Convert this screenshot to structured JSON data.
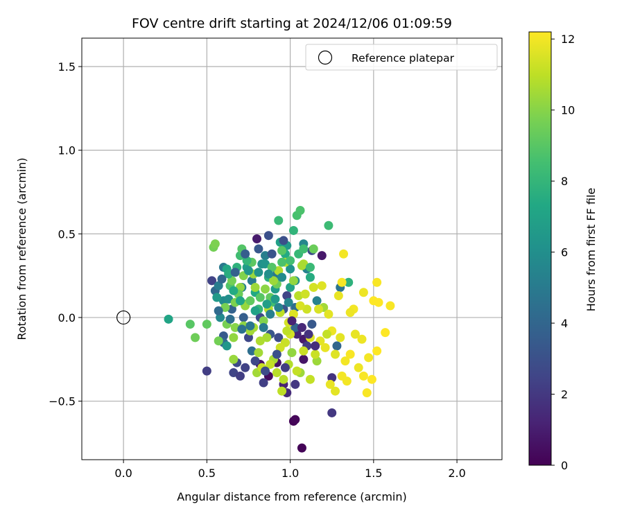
{
  "chart_data": {
    "type": "scatter",
    "title": "FOV centre drift starting at 2024/12/06 01:09:59",
    "xlabel": "Angular distance from reference (arcmin)",
    "ylabel": "Rotation from reference (arcmin)",
    "xlim": [
      -0.25,
      2.27
    ],
    "ylim": [
      -0.85,
      1.67
    ],
    "xticks": [
      "0.0",
      "0.5",
      "1.0",
      "1.5",
      "2.0"
    ],
    "xtick_values": [
      0.0,
      0.5,
      1.0,
      1.5,
      2.0
    ],
    "yticks": [
      "−0.5",
      "0.0",
      "0.5",
      "1.0",
      "1.5"
    ],
    "ytick_values": [
      -0.5,
      0.0,
      0.5,
      1.0,
      1.5
    ],
    "grid": true,
    "legend": {
      "position": "top-right",
      "entries": [
        "Reference platepar"
      ]
    },
    "reference_point": {
      "x": 0.0,
      "y": 0.0,
      "label": "Reference platepar"
    },
    "colorbar": {
      "label": "Hours from first FF file",
      "colormap": "viridis",
      "range": [
        0,
        12.2
      ],
      "ticks": [
        "0",
        "2",
        "4",
        "6",
        "8",
        "10",
        "12"
      ],
      "tick_values": [
        0,
        2,
        4,
        6,
        8,
        10,
        12
      ]
    },
    "points": [
      [
        1.02,
        -0.62,
        0.1
      ],
      [
        1.03,
        -0.61,
        0.2
      ],
      [
        1.07,
        -0.78,
        0.1
      ],
      [
        0.82,
        -0.28,
        0.5
      ],
      [
        0.92,
        -0.27,
        0.6
      ],
      [
        0.87,
        -0.35,
        0.4
      ],
      [
        1.08,
        -0.25,
        0.7
      ],
      [
        0.8,
        0.47,
        0.9
      ],
      [
        1.19,
        0.37,
        0.8
      ],
      [
        1.08,
        -0.13,
        0.9
      ],
      [
        0.96,
        -0.4,
        1.2
      ],
      [
        0.98,
        -0.45,
        1.5
      ],
      [
        1.04,
        -0.1,
        1.3
      ],
      [
        1.25,
        -0.57,
        2.0
      ],
      [
        1.25,
        -0.36,
        1.8
      ],
      [
        0.5,
        -0.32,
        2.2
      ],
      [
        0.53,
        0.22,
        2.4
      ],
      [
        0.66,
        -0.33,
        2.5
      ],
      [
        0.7,
        -0.35,
        2.2
      ],
      [
        0.68,
        -0.27,
        2.7
      ],
      [
        0.75,
        -0.12,
        2.6
      ],
      [
        0.84,
        -0.39,
        2.3
      ],
      [
        0.93,
        -0.12,
        2.8
      ],
      [
        1.1,
        -0.17,
        2.1
      ],
      [
        0.87,
        0.49,
        3.0
      ],
      [
        1.13,
        0.4,
        2.9
      ],
      [
        0.98,
        0.13,
        2.5
      ],
      [
        0.82,
        0.0,
        2.7
      ],
      [
        0.96,
        0.05,
        3.2
      ],
      [
        0.6,
        -0.11,
        3.5
      ],
      [
        0.72,
        0.0,
        3.6
      ],
      [
        0.65,
        0.05,
        3.8
      ],
      [
        0.88,
        -0.1,
        3.3
      ],
      [
        1.13,
        -0.04,
        3.4
      ],
      [
        1.03,
        -0.06,
        3.9
      ],
      [
        1.28,
        -0.17,
        4.0
      ],
      [
        0.6,
        -0.15,
        4.2
      ],
      [
        0.77,
        -0.2,
        4.4
      ],
      [
        1.03,
        0.06,
        4.3
      ],
      [
        0.55,
        0.16,
        4.1
      ],
      [
        1.3,
        0.18,
        4.7
      ],
      [
        0.6,
        0.3,
        4.9
      ],
      [
        0.57,
        0.19,
        5.1
      ],
      [
        0.71,
        0.18,
        5.3
      ],
      [
        0.92,
        0.26,
        4.8
      ],
      [
        0.77,
        0.22,
        5.0
      ],
      [
        0.85,
        0.37,
        5.2
      ],
      [
        1.1,
        0.29,
        5.4
      ],
      [
        1.08,
        0.44,
        5.6
      ],
      [
        1.16,
        0.1,
        5.3
      ],
      [
        0.58,
        0.0,
        5.7
      ],
      [
        0.6,
        0.1,
        5.8
      ],
      [
        0.63,
        0.11,
        6.0
      ],
      [
        0.83,
        0.32,
        6.1
      ],
      [
        0.85,
        0.32,
        6.3
      ],
      [
        1.03,
        0.22,
        5.9
      ],
      [
        1.0,
        0.29,
        6.2
      ],
      [
        0.62,
        -0.17,
        6.4
      ],
      [
        0.56,
        0.12,
        6.5
      ],
      [
        0.98,
        0.43,
        6.6
      ],
      [
        0.91,
        0.17,
        6.7
      ],
      [
        0.74,
        0.3,
        6.8
      ],
      [
        0.94,
        0.45,
        6.9
      ],
      [
        1.0,
        0.18,
        7.0
      ],
      [
        0.27,
        -0.01,
        7.1
      ],
      [
        0.62,
        0.29,
        7.2
      ],
      [
        0.79,
        0.15,
        7.3
      ],
      [
        0.97,
        0.38,
        7.4
      ],
      [
        1.12,
        0.24,
        7.5
      ],
      [
        0.87,
        0.24,
        7.6
      ],
      [
        1.35,
        0.21,
        7.8
      ],
      [
        1.02,
        0.52,
        7.9
      ],
      [
        0.81,
        0.05,
        8.0
      ],
      [
        1.05,
        0.38,
        8.1
      ],
      [
        0.93,
        0.58,
        8.2
      ],
      [
        1.23,
        0.55,
        8.3
      ],
      [
        0.7,
        0.37,
        8.4
      ],
      [
        0.89,
        0.09,
        8.5
      ],
      [
        1.04,
        0.61,
        8.6
      ],
      [
        1.06,
        0.64,
        8.7
      ],
      [
        0.64,
        0.19,
        8.8
      ],
      [
        0.71,
        0.41,
        8.9
      ],
      [
        0.95,
        0.4,
        9.0
      ],
      [
        0.77,
        0.33,
        9.1
      ],
      [
        0.88,
        0.12,
        9.2
      ],
      [
        0.73,
        0.08,
        9.3
      ],
      [
        1.14,
        0.41,
        9.4
      ],
      [
        0.92,
        0.2,
        9.5
      ],
      [
        0.57,
        -0.14,
        9.6
      ],
      [
        0.61,
        0.06,
        9.7
      ],
      [
        0.67,
        0.09,
        9.8
      ],
      [
        0.84,
        -0.02,
        9.9
      ],
      [
        0.4,
        -0.04,
        9.0
      ],
      [
        0.5,
        -0.04,
        9.2
      ],
      [
        0.54,
        0.42,
        9.6
      ],
      [
        0.55,
        0.44,
        9.8
      ],
      [
        0.43,
        -0.12,
        9.5
      ],
      [
        0.62,
        -0.04,
        9.7
      ],
      [
        0.67,
        -0.06,
        10.0
      ],
      [
        0.72,
        -0.05,
        10.1
      ],
      [
        0.7,
        0.18,
        10.2
      ],
      [
        0.73,
        0.07,
        10.3
      ],
      [
        0.79,
        0.18,
        10.4
      ],
      [
        1.01,
        -0.21,
        10.2
      ],
      [
        0.81,
        -0.21,
        10.5
      ],
      [
        0.86,
        -0.12,
        10.6
      ],
      [
        1.06,
        -0.33,
        10.4
      ],
      [
        1.08,
        0.32,
        10.7
      ],
      [
        0.92,
        -0.33,
        10.9
      ],
      [
        0.95,
        -0.44,
        11.0
      ],
      [
        0.99,
        -0.28,
        10.8
      ],
      [
        1.04,
        -0.32,
        11.1
      ],
      [
        0.66,
        -0.25,
        10.3
      ],
      [
        0.8,
        -0.33,
        10.5
      ],
      [
        0.9,
        -0.25,
        10.6
      ],
      [
        1.16,
        -0.26,
        10.4
      ],
      [
        0.82,
        -0.14,
        10.7
      ],
      [
        0.96,
        -0.37,
        10.9
      ],
      [
        1.12,
        -0.37,
        11.1
      ],
      [
        1.2,
        0.06,
        10.5
      ],
      [
        0.93,
        0.28,
        10.8
      ],
      [
        0.78,
        -0.06,
        10.6
      ],
      [
        0.94,
        0.03,
        11.0
      ],
      [
        1.05,
        0.13,
        10.9
      ],
      [
        0.97,
        -0.15,
        11.2
      ],
      [
        1.0,
        -0.1,
        11.4
      ],
      [
        1.1,
        0.05,
        11.3
      ],
      [
        1.17,
        0.05,
        11.5
      ],
      [
        1.12,
        -0.12,
        11.6
      ],
      [
        1.18,
        -0.14,
        11.7
      ],
      [
        1.21,
        -0.18,
        11.8
      ],
      [
        1.25,
        -0.08,
        11.9
      ],
      [
        1.27,
        -0.22,
        11.6
      ],
      [
        1.3,
        -0.12,
        11.7
      ],
      [
        1.33,
        -0.26,
        12.0
      ],
      [
        1.36,
        -0.22,
        12.1
      ],
      [
        1.39,
        -0.1,
        11.8
      ],
      [
        1.43,
        -0.13,
        11.9
      ],
      [
        1.47,
        -0.24,
        12.0
      ],
      [
        1.52,
        -0.2,
        12.2
      ],
      [
        1.44,
        -0.35,
        12.1
      ],
      [
        1.49,
        -0.37,
        12.2
      ],
      [
        1.41,
        -0.3,
        11.9
      ],
      [
        1.34,
        -0.38,
        12.0
      ],
      [
        1.24,
        -0.4,
        11.8
      ],
      [
        1.27,
        -0.44,
        11.7
      ],
      [
        1.31,
        -0.35,
        12.0
      ],
      [
        1.46,
        -0.45,
        12.1
      ],
      [
        1.52,
        0.21,
        12.1
      ],
      [
        1.5,
        0.1,
        12.2
      ],
      [
        1.44,
        0.15,
        11.9
      ],
      [
        1.38,
        0.05,
        12.0
      ],
      [
        1.31,
        0.21,
        12.1
      ],
      [
        1.29,
        0.13,
        11.8
      ],
      [
        1.57,
        -0.09,
        12.2
      ],
      [
        1.6,
        0.07,
        12.1
      ],
      [
        1.53,
        0.09,
        12.2
      ],
      [
        1.36,
        0.03,
        11.9
      ],
      [
        1.32,
        0.38,
        12.0
      ],
      [
        1.23,
        0.02,
        11.7
      ],
      [
        1.19,
        0.19,
        11.6
      ],
      [
        1.14,
        0.18,
        11.4
      ],
      [
        1.09,
        0.14,
        11.3
      ],
      [
        1.06,
        0.07,
        11.5
      ],
      [
        1.02,
        0.02,
        11.6
      ],
      [
        0.99,
        -0.03,
        11.4
      ],
      [
        1.15,
        -0.22,
        11.2
      ],
      [
        1.22,
        -0.1,
        11.1
      ],
      [
        0.76,
        -0.08,
        10.5
      ],
      [
        0.66,
        -0.12,
        10.2
      ],
      [
        0.87,
        0.05,
        10.8
      ],
      [
        0.98,
        -0.08,
        11.0
      ],
      [
        0.88,
        -0.28,
        11.1
      ],
      [
        0.83,
        -0.3,
        11.2
      ],
      [
        0.94,
        -0.18,
        11.3
      ],
      [
        1.08,
        -0.2,
        11.2
      ],
      [
        0.97,
        0.33,
        10.8
      ],
      [
        0.9,
        0.22,
        10.4
      ],
      [
        1.02,
        0.22,
        10.2
      ],
      [
        1.07,
        0.31,
        10.6
      ],
      [
        0.85,
        0.17,
        10.1
      ],
      [
        0.78,
        0.26,
        10.3
      ],
      [
        0.72,
        0.25,
        9.9
      ],
      [
        0.65,
        0.22,
        9.6
      ],
      [
        0.69,
        0.14,
        9.4
      ],
      [
        0.76,
        0.1,
        9.2
      ],
      [
        0.82,
        0.12,
        9.0
      ],
      [
        0.89,
        0.3,
        8.9
      ],
      [
        0.95,
        0.33,
        8.7
      ],
      [
        1.0,
        0.34,
        8.5
      ],
      [
        1.08,
        0.41,
        8.4
      ],
      [
        1.12,
        0.3,
        8.2
      ],
      [
        0.74,
        0.34,
        8.0
      ],
      [
        0.68,
        0.3,
        7.8
      ],
      [
        0.63,
        0.26,
        7.6
      ],
      [
        0.66,
        0.16,
        7.4
      ],
      [
        0.7,
        0.1,
        7.2
      ],
      [
        0.79,
        0.04,
        7.0
      ],
      [
        0.86,
        0.08,
        6.8
      ],
      [
        0.91,
        0.11,
        6.6
      ],
      [
        0.75,
        0.28,
        6.4
      ],
      [
        0.81,
        0.27,
        6.2
      ],
      [
        0.87,
        0.26,
        6.0
      ],
      [
        0.95,
        0.24,
        5.8
      ],
      [
        0.99,
        0.09,
        5.6
      ],
      [
        0.93,
        0.06,
        5.4
      ],
      [
        0.88,
        0.02,
        5.2
      ],
      [
        0.84,
        -0.06,
        5.0
      ],
      [
        0.76,
        -0.05,
        4.8
      ],
      [
        0.71,
        -0.07,
        4.6
      ],
      [
        0.64,
        -0.01,
        4.4
      ],
      [
        0.57,
        0.04,
        4.2
      ],
      [
        0.59,
        0.23,
        4.0
      ],
      [
        0.67,
        0.27,
        3.8
      ],
      [
        0.73,
        0.38,
        3.6
      ],
      [
        0.81,
        0.41,
        3.4
      ],
      [
        0.89,
        0.38,
        3.2
      ],
      [
        0.96,
        0.46,
        3.0
      ],
      [
        0.92,
        -0.22,
        3.0
      ],
      [
        0.85,
        -0.32,
        2.8
      ],
      [
        0.79,
        -0.26,
        2.6
      ],
      [
        0.73,
        -0.3,
        2.4
      ],
      [
        0.97,
        -0.3,
        2.2
      ],
      [
        1.03,
        -0.4,
        2.0
      ],
      [
        1.11,
        -0.1,
        1.8
      ],
      [
        1.15,
        -0.17,
        1.6
      ],
      [
        1.07,
        -0.06,
        1.4
      ],
      [
        1.01,
        -0.02,
        1.2
      ]
    ]
  }
}
